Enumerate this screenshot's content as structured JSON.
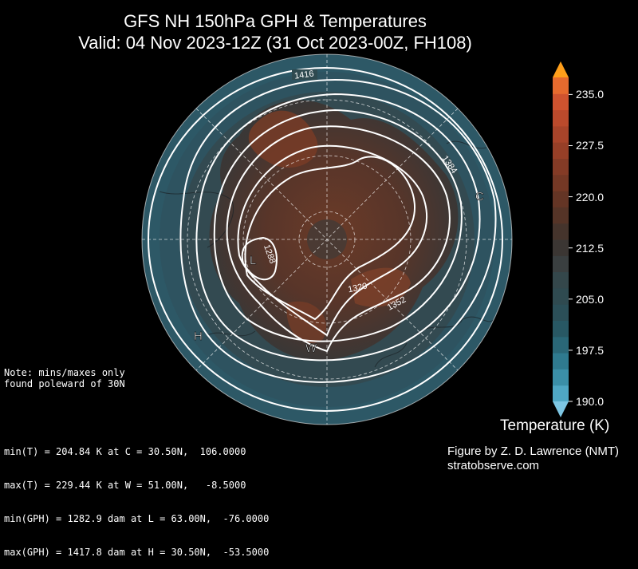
{
  "title_line1": "GFS NH 150hPa GPH & Temperatures",
  "title_line2": "Valid: 04 Nov 2023-12Z  (31 Oct 2023-00Z, FH108)",
  "note": "Note: mins/maxes only\nfound poleward of 30N",
  "stats": [
    "min(T) = 204.84 K at C = 30.50N,  106.0000",
    "max(T) = 229.44 K at W = 51.00N,   -8.5000",
    "min(GPH) = 1282.9 dam at L = 63.00N,  -76.0000",
    "max(GPH) = 1417.8 dam at H = 30.50N,  -53.5000"
  ],
  "credit_line1": "Figure by Z. D. Lawrence (NMT)",
  "credit_line2": "stratobserve.com",
  "colorbar": {
    "title": "Temperature (K)",
    "ticks": [
      "235.0",
      "227.5",
      "220.0",
      "212.5",
      "205.0",
      "197.5",
      "190.0"
    ],
    "range": [
      190,
      237.5
    ],
    "colors": [
      "#4fa7c4",
      "#3b8fa8",
      "#2f7a8f",
      "#2a6777",
      "#285864",
      "#2b4f58",
      "#2f4a50",
      "#34474b",
      "#3a3f40",
      "#3b3633",
      "#45342c",
      "#553427",
      "#643525",
      "#743825",
      "#843b26",
      "#963f27",
      "#a8442a",
      "#bb4a2c",
      "#cf532f",
      "#e66a2e"
    ],
    "extend_low_color": "#7dc6e3",
    "extend_high_color": "#ff9e1a"
  },
  "map_labels": {
    "contours": [
      "1416",
      "1384",
      "1288",
      "1320",
      "1352"
    ],
    "markers": {
      "C": "C",
      "W": "W",
      "L": "L",
      "H": "H"
    }
  }
}
